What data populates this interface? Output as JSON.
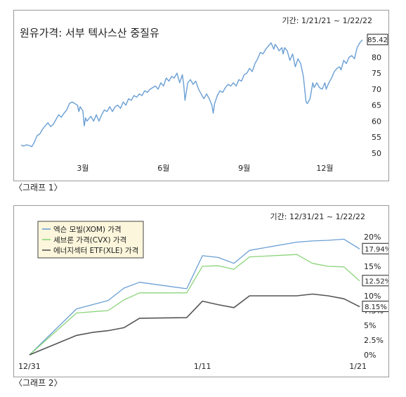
{
  "chart_data": [
    {
      "type": "line",
      "title": "원유가격: 서부 텍사스산 중질유",
      "period": "기간: 1/21/21 ~ 1/22/22",
      "caption": "〈그래프 1〉",
      "ylim": [
        48,
        88
      ],
      "yticks": [
        "50",
        "55",
        "60",
        "65",
        "70",
        "75",
        "80"
      ],
      "xticks": [
        {
          "label": "3월",
          "month": 2.0
        },
        {
          "label": "6월",
          "month": 5.0
        },
        {
          "label": "9월",
          "month": 8.0
        },
        {
          "label": "12월",
          "month": 11.0
        }
      ],
      "end_label": "85.42",
      "color": "#6a9fd4",
      "series": [
        {
          "values": [
            [
              -0.3,
              52.5
            ],
            [
              -0.2,
              52.2
            ],
            [
              -0.1,
              52.6
            ],
            [
              0.0,
              52.4
            ],
            [
              0.1,
              52.0
            ],
            [
              0.2,
              53.5
            ],
            [
              0.3,
              55.5
            ],
            [
              0.4,
              56.0
            ],
            [
              0.5,
              57.5
            ],
            [
              0.6,
              58.5
            ],
            [
              0.7,
              59.5
            ],
            [
              0.8,
              58.3
            ],
            [
              0.9,
              59.0
            ],
            [
              1.0,
              60.5
            ],
            [
              1.1,
              62.0
            ],
            [
              1.2,
              61.2
            ],
            [
              1.3,
              62.5
            ],
            [
              1.4,
              63.5
            ],
            [
              1.5,
              65.5
            ],
            [
              1.6,
              66.0
            ],
            [
              1.7,
              65.5
            ],
            [
              1.8,
              65.0
            ],
            [
              1.85,
              63.0
            ],
            [
              1.9,
              64.5
            ],
            [
              2.0,
              63.2
            ],
            [
              2.05,
              58.5
            ],
            [
              2.1,
              61.0
            ],
            [
              2.15,
              60.0
            ],
            [
              2.3,
              61.5
            ],
            [
              2.4,
              60.0
            ],
            [
              2.5,
              62.0
            ],
            [
              2.6,
              60.0
            ],
            [
              2.7,
              62.0
            ],
            [
              2.8,
              63.5
            ],
            [
              2.9,
              63.0
            ],
            [
              3.0,
              64.5
            ],
            [
              3.1,
              63.0
            ],
            [
              3.2,
              64.5
            ],
            [
              3.3,
              65.0
            ],
            [
              3.4,
              64.0
            ],
            [
              3.5,
              66.0
            ],
            [
              3.6,
              65.0
            ],
            [
              3.7,
              67.0
            ],
            [
              3.8,
              66.5
            ],
            [
              3.9,
              68.0
            ],
            [
              4.0,
              67.5
            ],
            [
              4.1,
              68.5
            ],
            [
              4.2,
              68.0
            ],
            [
              4.3,
              69.5
            ],
            [
              4.4,
              69.0
            ],
            [
              4.5,
              70.0
            ],
            [
              4.6,
              70.5
            ],
            [
              4.7,
              71.0
            ],
            [
              4.8,
              70.0
            ],
            [
              4.9,
              72.0
            ],
            [
              5.0,
              71.0
            ],
            [
              5.1,
              73.5
            ],
            [
              5.2,
              72.5
            ],
            [
              5.3,
              74.0
            ],
            [
              5.4,
              73.5
            ],
            [
              5.5,
              75.0
            ],
            [
              5.6,
              72.0
            ],
            [
              5.7,
              74.5
            ],
            [
              5.75,
              71.5
            ],
            [
              5.8,
              66.5
            ],
            [
              5.9,
              72.0
            ],
            [
              6.0,
              73.0
            ],
            [
              6.1,
              71.5
            ],
            [
              6.2,
              72.5
            ],
            [
              6.3,
              70.0
            ],
            [
              6.4,
              68.5
            ],
            [
              6.5,
              67.0
            ],
            [
              6.6,
              68.5
            ],
            [
              6.7,
              67.0
            ],
            [
              6.8,
              65.0
            ],
            [
              6.85,
              62.5
            ],
            [
              6.9,
              65.5
            ],
            [
              7.0,
              68.0
            ],
            [
              7.1,
              69.5
            ],
            [
              7.2,
              69.0
            ],
            [
              7.3,
              70.5
            ],
            [
              7.4,
              71.5
            ],
            [
              7.5,
              71.0
            ],
            [
              7.6,
              72.0
            ],
            [
              7.7,
              71.0
            ],
            [
              7.8,
              73.0
            ],
            [
              7.9,
              72.5
            ],
            [
              8.0,
              74.5
            ],
            [
              8.1,
              75.0
            ],
            [
              8.2,
              76.5
            ],
            [
              8.3,
              75.5
            ],
            [
              8.4,
              78.0
            ],
            [
              8.5,
              79.5
            ],
            [
              8.6,
              81.5
            ],
            [
              8.7,
              81.0
            ],
            [
              8.8,
              82.5
            ],
            [
              8.9,
              83.5
            ],
            [
              9.0,
              84.5
            ],
            [
              9.1,
              82.5
            ],
            [
              9.15,
              84.0
            ],
            [
              9.2,
              83.5
            ],
            [
              9.3,
              82.0
            ],
            [
              9.4,
              83.0
            ],
            [
              9.45,
              81.0
            ],
            [
              9.5,
              83.0
            ],
            [
              9.6,
              82.0
            ],
            [
              9.7,
              79.0
            ],
            [
              9.8,
              81.0
            ],
            [
              9.9,
              77.0
            ],
            [
              10.0,
              79.5
            ],
            [
              10.1,
              78.0
            ],
            [
              10.2,
              74.0
            ],
            [
              10.25,
              70.0
            ],
            [
              10.3,
              66.0
            ],
            [
              10.35,
              65.5
            ],
            [
              10.45,
              67.0
            ],
            [
              10.55,
              72.0
            ],
            [
              10.6,
              70.5
            ],
            [
              10.7,
              72.0
            ],
            [
              10.8,
              70.5
            ],
            [
              10.9,
              70.0
            ],
            [
              10.95,
              71.0
            ],
            [
              11.0,
              72.0
            ],
            [
              11.05,
              70.0
            ],
            [
              11.15,
              72.0
            ],
            [
              11.25,
              73.5
            ],
            [
              11.35,
              75.5
            ],
            [
              11.45,
              76.5
            ],
            [
              11.55,
              77.0
            ],
            [
              11.6,
              76.0
            ],
            [
              11.7,
              79.0
            ],
            [
              11.8,
              78.0
            ],
            [
              11.9,
              80.0
            ],
            [
              12.0,
              80.5
            ],
            [
              12.1,
              79.5
            ],
            [
              12.2,
              83.0
            ],
            [
              12.3,
              84.5
            ],
            [
              12.4,
              85.42
            ]
          ]
        }
      ]
    },
    {
      "type": "line",
      "period": "기간: 12/31/21 ~ 1/22/22",
      "caption": "〈그래프 2〉",
      "ylim": [
        0,
        20
      ],
      "yticks": [
        "0%",
        "2.5%",
        "5%",
        "7.5%",
        "10%",
        "15%",
        "20%"
      ],
      "ytick_values": [
        0,
        2.5,
        5,
        7.5,
        10,
        15,
        20
      ],
      "xticks": [
        {
          "label": "12/31",
          "day": 0
        },
        {
          "label": "1/11",
          "day": 11
        },
        {
          "label": "1/21",
          "day": 21
        }
      ],
      "legend_position": "top-left",
      "series": [
        {
          "name": "엑슨 모빌(XOM) 가격",
          "color": "#6a9fd4",
          "end_label": "17.94%",
          "days": [
            0,
            3,
            4,
            5,
            6,
            7,
            10,
            11,
            12,
            13,
            14,
            17,
            18,
            19,
            20,
            21
          ],
          "values": [
            0,
            7.8,
            8.5,
            9.2,
            11.3,
            12.3,
            11.2,
            16.8,
            16.5,
            15.5,
            17.7,
            19.1,
            19.3,
            19.4,
            19.6,
            17.94
          ]
        },
        {
          "name": "셰브론 가격(CVX) 가격",
          "color": "#8bd47a",
          "end_label": "12.52%",
          "days": [
            0,
            3,
            4,
            5,
            6,
            7,
            10,
            11,
            12,
            13,
            14,
            17,
            18,
            19,
            20,
            21
          ],
          "values": [
            0,
            7.1,
            7.3,
            7.5,
            9.3,
            10.5,
            10.5,
            15.0,
            15.1,
            14.5,
            16.6,
            17.0,
            15.5,
            15.0,
            14.9,
            12.52
          ]
        },
        {
          "name": "에너지섹터 ETF(XLE) 가격",
          "color": "#555555",
          "end_label": "8.15%",
          "days": [
            0,
            3,
            4,
            5,
            6,
            7,
            10,
            11,
            12,
            13,
            14,
            17,
            18,
            19,
            20,
            21
          ],
          "values": [
            0,
            3.3,
            3.8,
            4.1,
            4.6,
            6.2,
            6.3,
            9.1,
            8.5,
            8.0,
            10.0,
            10.0,
            10.3,
            10.0,
            9.5,
            8.15
          ]
        }
      ]
    }
  ]
}
